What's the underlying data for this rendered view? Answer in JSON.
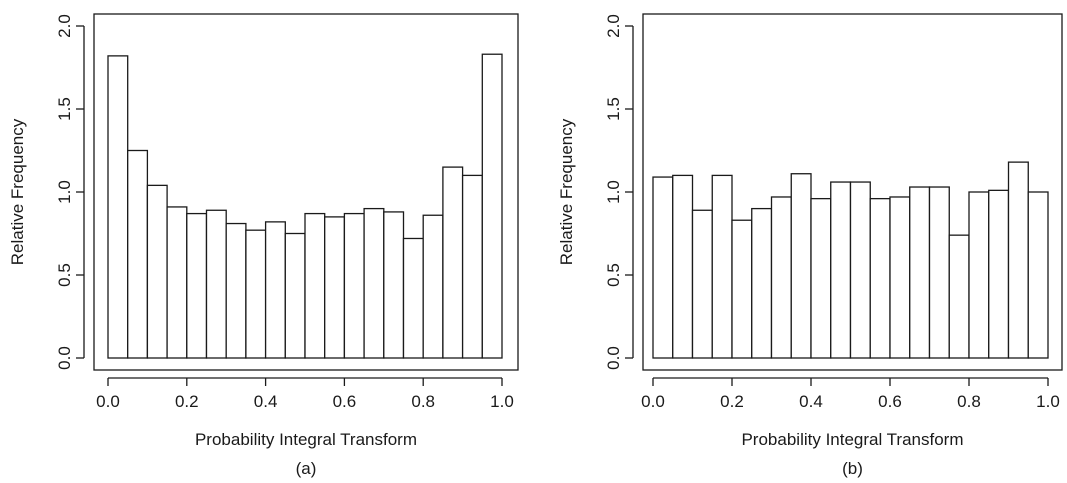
{
  "chart_data": [
    {
      "type": "bar",
      "panel_label": "(a)",
      "xlabel": "Probability Integral Transform",
      "ylabel": "Relative Frequency",
      "xlim": [
        0.0,
        1.0
      ],
      "ylim": [
        0.0,
        2.0
      ],
      "xticks": [
        "0.0",
        "0.2",
        "0.4",
        "0.6",
        "0.8",
        "1.0"
      ],
      "yticks": [
        "0.0",
        "0.5",
        "1.0",
        "1.5",
        "2.0"
      ],
      "bin_width": 0.05,
      "values": [
        1.82,
        1.25,
        1.04,
        0.91,
        0.87,
        0.89,
        0.81,
        0.77,
        0.82,
        0.75,
        0.87,
        0.85,
        0.87,
        0.9,
        0.88,
        0.72,
        0.86,
        1.15,
        1.1,
        1.83
      ]
    },
    {
      "type": "bar",
      "panel_label": "(b)",
      "xlabel": "Probability Integral Transform",
      "ylabel": "Relative Frequency",
      "xlim": [
        0.0,
        1.0
      ],
      "ylim": [
        0.0,
        2.0
      ],
      "xticks": [
        "0.0",
        "0.2",
        "0.4",
        "0.6",
        "0.8",
        "1.0"
      ],
      "yticks": [
        "0.0",
        "0.5",
        "1.0",
        "1.5",
        "2.0"
      ],
      "bin_width": 0.05,
      "values": [
        1.09,
        1.1,
        0.89,
        1.1,
        0.83,
        0.9,
        0.97,
        1.11,
        0.96,
        1.06,
        1.06,
        0.96,
        0.97,
        1.03,
        1.03,
        0.74,
        1.0,
        1.01,
        1.18,
        1.0
      ]
    }
  ]
}
